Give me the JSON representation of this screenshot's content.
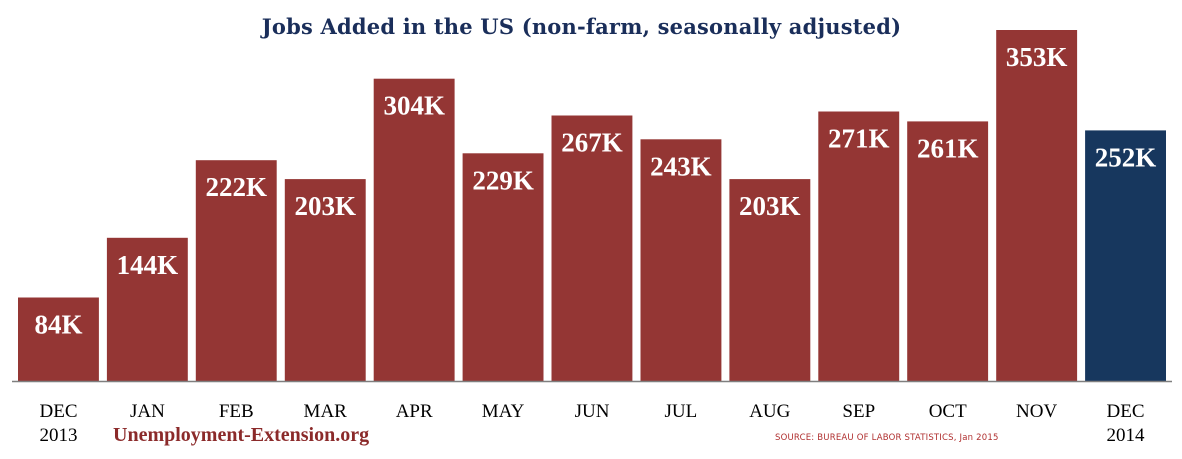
{
  "chart_data": {
    "type": "bar",
    "title": "Jobs Added in the US (non-farm, seasonally adjusted)",
    "xlabel": "",
    "ylabel": "",
    "ylim": [
      0,
      360
    ],
    "categories": [
      [
        "DEC",
        "2013"
      ],
      [
        "JAN"
      ],
      [
        "FEB"
      ],
      [
        "MAR"
      ],
      [
        "APR"
      ],
      [
        "MAY"
      ],
      [
        "JUN"
      ],
      [
        "JUL"
      ],
      [
        "AUG"
      ],
      [
        "SEP"
      ],
      [
        "OCT"
      ],
      [
        "NOV"
      ],
      [
        "DEC",
        "2014"
      ]
    ],
    "values": [
      84,
      144,
      222,
      203,
      304,
      229,
      267,
      243,
      203,
      271,
      261,
      353,
      252
    ],
    "value_labels": [
      "84K",
      "144K",
      "222K",
      "203K",
      "304K",
      "229K",
      "267K",
      "243K",
      "203K",
      "271K",
      "261K",
      "353K",
      "252K"
    ],
    "highlight_index": 12,
    "colors": {
      "bar": "#943634",
      "highlight": "#17375e",
      "label": "#ffffff",
      "axis": "#7f7f7f",
      "tick_label": "#000000"
    }
  },
  "footer": {
    "watermark": "Unemployment-Extension.org",
    "source": "SOURCE: BUREAU OF LABOR STATISTICS, Jan 2015"
  }
}
